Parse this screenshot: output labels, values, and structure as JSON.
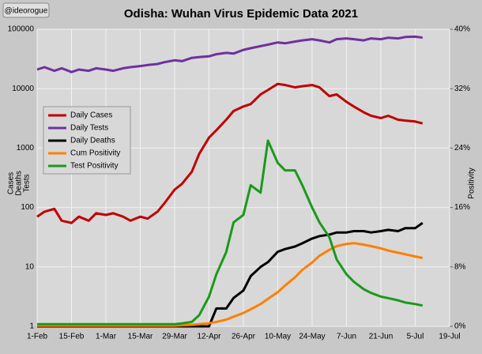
{
  "chart_data": {
    "type": "line",
    "title": "Odisha: Wuhan Virus Epidemic Data 2021",
    "watermark": "@ideorogue",
    "ylabel": [
      "Cases",
      "Deaths",
      "Tests"
    ],
    "y2label": "Positivity",
    "x": [
      "1-Feb",
      "4-Feb",
      "8-Feb",
      "11-Feb",
      "15-Feb",
      "18-Feb",
      "22-Feb",
      "25-Feb",
      "1-Mar",
      "4-Mar",
      "8-Mar",
      "11-Mar",
      "15-Mar",
      "18-Mar",
      "22-Mar",
      "25-Mar",
      "29-Mar",
      "1-Apr",
      "5-Apr",
      "8-Apr",
      "12-Apr",
      "15-Apr",
      "19-Apr",
      "22-Apr",
      "26-Apr",
      "29-Apr",
      "3-May",
      "6-May",
      "10-May",
      "13-May",
      "17-May",
      "20-May",
      "24-May",
      "27-May",
      "31-May",
      "3-Jun",
      "7-Jun",
      "10-Jun",
      "14-Jun",
      "17-Jun",
      "21-Jun",
      "24-Jun",
      "28-Jun",
      "1-Jul",
      "5-Jul",
      "8-Jul"
    ],
    "xlim": [
      "1-Feb",
      "19-Jul"
    ],
    "xticks": [
      "1-Feb",
      "15-Feb",
      "1-Mar",
      "15-Mar",
      "29-Mar",
      "12-Apr",
      "26-Apr",
      "10-May",
      "24-May",
      "7-Jun",
      "21-Jun",
      "5-Jul",
      "19-Jul"
    ],
    "ylog": true,
    "ylim": [
      1,
      100000
    ],
    "yticks": [
      1,
      10,
      100,
      1000,
      10000,
      100000
    ],
    "y2lim": [
      0,
      40
    ],
    "y2ticks": [
      {
        "value": 0,
        "label": "0%"
      },
      {
        "value": 8,
        "label": "8%"
      },
      {
        "value": 16,
        "label": "16%"
      },
      {
        "value": 24,
        "label": "24%"
      },
      {
        "value": 32,
        "label": "32%"
      },
      {
        "value": 40,
        "label": "40%"
      }
    ],
    "grid": true,
    "legend": "upper left",
    "series": [
      {
        "name": "Daily Cases",
        "color": "#c00000",
        "values": [
          70,
          85,
          95,
          60,
          55,
          70,
          60,
          80,
          75,
          80,
          70,
          60,
          70,
          65,
          85,
          120,
          200,
          250,
          400,
          800,
          1500,
          2000,
          3000,
          4200,
          5000,
          5500,
          8000,
          9500,
          12000,
          11500,
          10500,
          11000,
          11500,
          10500,
          7500,
          8000,
          6000,
          5000,
          4000,
          3500,
          3200,
          3500,
          3000,
          2900,
          2800,
          2600
        ]
      },
      {
        "name": "Daily Tests",
        "color": "#7030a0",
        "values": [
          21000,
          23000,
          20000,
          22000,
          19000,
          21000,
          20000,
          22000,
          21000,
          20000,
          22000,
          23000,
          24000,
          25000,
          26000,
          28000,
          30000,
          29000,
          33000,
          34000,
          35000,
          38000,
          40000,
          39000,
          45000,
          48000,
          52000,
          55000,
          60000,
          58000,
          62000,
          65000,
          68000,
          65000,
          60000,
          68000,
          70000,
          68000,
          65000,
          70000,
          68000,
          72000,
          70000,
          74000,
          75000,
          72000
        ]
      },
      {
        "name": "Daily Deaths",
        "color": "#000000",
        "values": [
          1,
          1,
          1,
          1,
          1,
          1,
          1,
          1,
          1,
          1,
          1,
          1,
          1,
          1,
          1,
          1,
          1,
          1,
          1,
          1,
          1,
          2,
          2,
          3,
          4,
          7,
          10,
          12,
          18,
          20,
          22,
          25,
          30,
          33,
          35,
          38,
          38,
          40,
          40,
          38,
          40,
          42,
          40,
          45,
          45,
          55
        ]
      },
      {
        "name": "Cum Positivity",
        "color": "#ff7f00",
        "axis": "y2",
        "values": [
          0.1,
          0.1,
          0.1,
          0.1,
          0.1,
          0.1,
          0.1,
          0.1,
          0.1,
          0.1,
          0.1,
          0.1,
          0.1,
          0.1,
          0.1,
          0.1,
          0.1,
          0.15,
          0.2,
          0.3,
          0.4,
          0.6,
          0.9,
          1.3,
          1.8,
          2.3,
          3.0,
          3.7,
          4.6,
          5.5,
          6.6,
          7.6,
          8.6,
          9.5,
          10.3,
          10.8,
          11.1,
          11.2,
          11.0,
          10.8,
          10.5,
          10.2,
          9.9,
          9.7,
          9.4,
          9.2
        ]
      },
      {
        "name": "Test Positivity",
        "color": "#1a9a1a",
        "axis": "y2",
        "values": [
          0.3,
          0.3,
          0.3,
          0.3,
          0.3,
          0.3,
          0.3,
          0.3,
          0.3,
          0.3,
          0.3,
          0.3,
          0.3,
          0.3,
          0.3,
          0.3,
          0.3,
          0.4,
          0.6,
          1.5,
          4,
          7,
          10,
          14,
          15,
          19,
          18,
          25,
          22,
          21,
          21,
          19,
          16,
          14,
          12,
          9,
          7,
          6,
          5,
          4.5,
          4,
          3.8,
          3.5,
          3.2,
          3.0,
          2.8
        ]
      }
    ]
  }
}
